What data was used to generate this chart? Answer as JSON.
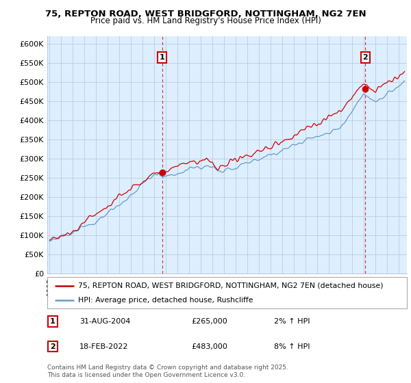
{
  "title1": "75, REPTON ROAD, WEST BRIDGFORD, NOTTINGHAM, NG2 7EN",
  "title2": "Price paid vs. HM Land Registry's House Price Index (HPI)",
  "ylabel_ticks": [
    "£0",
    "£50K",
    "£100K",
    "£150K",
    "£200K",
    "£250K",
    "£300K",
    "£350K",
    "£400K",
    "£450K",
    "£500K",
    "£550K",
    "£600K"
  ],
  "ytick_values": [
    0,
    50000,
    100000,
    150000,
    200000,
    250000,
    300000,
    350000,
    400000,
    450000,
    500000,
    550000,
    600000
  ],
  "ylim": [
    0,
    620000
  ],
  "xlim_start": 1994.8,
  "xlim_end": 2025.7,
  "marker1_x": 2004.667,
  "marker1_y": 265000,
  "marker1_label": "1",
  "marker2_x": 2022.125,
  "marker2_y": 483000,
  "marker2_label": "2",
  "red_line_color": "#cc0000",
  "blue_line_color": "#6699cc",
  "plot_bg_color": "#ddeeff",
  "marker_box_color": "#cc0000",
  "annotation1_date": "31-AUG-2004",
  "annotation1_price": "£265,000",
  "annotation1_hpi": "2% ↑ HPI",
  "annotation2_date": "18-FEB-2022",
  "annotation2_price": "£483,000",
  "annotation2_hpi": "8% ↑ HPI",
  "legend_line1": "75, REPTON ROAD, WEST BRIDGFORD, NOTTINGHAM, NG2 7EN (detached house)",
  "legend_line2": "HPI: Average price, detached house, Rushcliffe",
  "footer": "Contains HM Land Registry data © Crown copyright and database right 2025.\nThis data is licensed under the Open Government Licence v3.0.",
  "background_color": "#ffffff",
  "grid_color": "#bbccdd"
}
